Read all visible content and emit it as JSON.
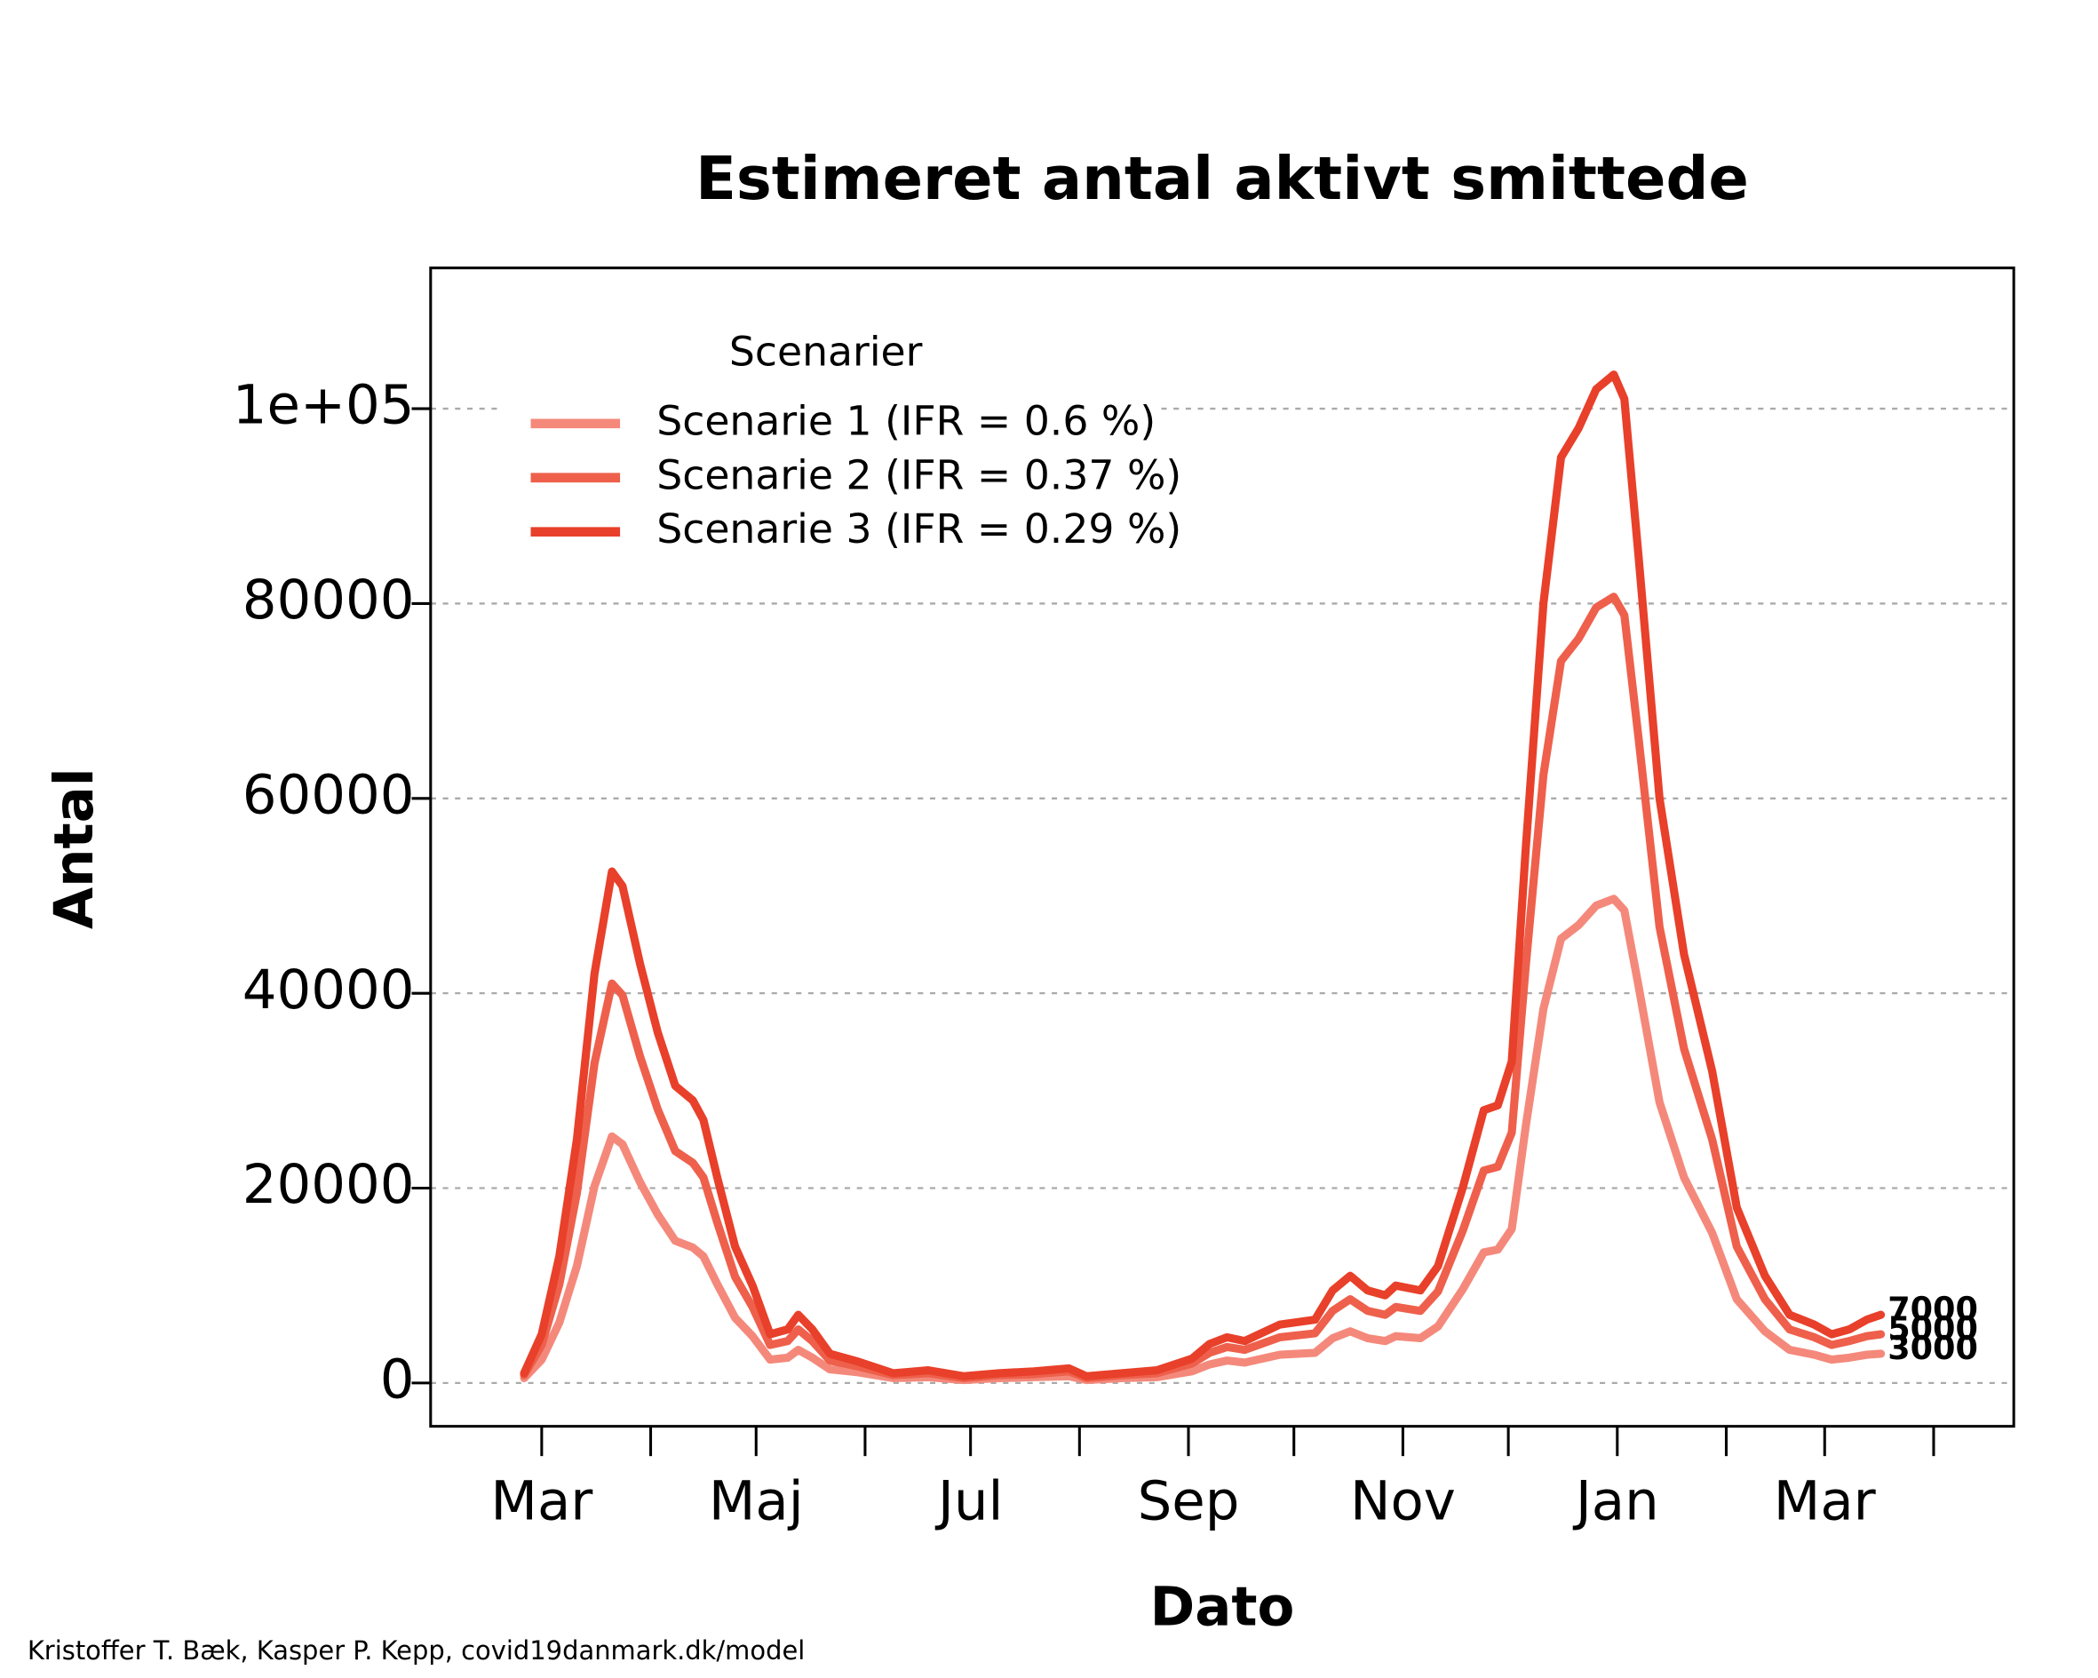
{
  "chart_data": {
    "type": "line",
    "title": "Estimeret antal aktivt smittede",
    "xlabel": "Dato",
    "ylabel": "Antal",
    "credit": "Kristoffer T. Bæk, Kasper P. Kepp, covid19danmark.dk/model",
    "legend_title": "Scenarier",
    "legend_position": "upper left",
    "grid": true,
    "xlim": [
      -31.6,
      418.8
    ],
    "xticks": [
      {
        "value": 0,
        "label": "Mar"
      },
      {
        "value": 61,
        "label": "Maj"
      },
      {
        "value": 122,
        "label": "Jul"
      },
      {
        "value": 184,
        "label": "Sep"
      },
      {
        "value": 245,
        "label": "Nov"
      },
      {
        "value": 306,
        "label": "Jan"
      },
      {
        "value": 365,
        "label": "Mar"
      }
    ],
    "xminor_ticks": [
      31,
      92,
      153,
      214,
      275,
      337,
      396
    ],
    "ylim": [
      -4444,
      114444
    ],
    "yticks": [
      0,
      20000,
      40000,
      60000,
      80000,
      {
        "value": 100000,
        "label": "1e+05"
      }
    ],
    "x": [
      -5,
      0,
      5,
      10,
      15,
      20,
      23,
      28,
      33,
      38,
      43,
      46,
      50,
      55,
      60,
      65,
      70,
      73,
      77,
      82,
      90,
      100,
      110,
      120,
      130,
      140,
      150,
      155,
      165,
      175,
      185,
      190,
      195,
      200,
      210,
      220,
      225,
      230,
      235,
      240,
      243,
      250,
      255,
      262,
      268,
      272,
      276,
      280,
      285,
      290,
      295,
      300,
      305,
      308,
      312,
      318,
      325,
      333,
      340,
      348,
      355,
      362,
      367,
      372,
      377,
      381
    ],
    "series": [
      {
        "name": "Scenarie 1 (IFR = 0.6 %)",
        "color": "#f4897b",
        "end_label": "3000",
        "values": [
          500,
          2400,
          6200,
          12000,
          20200,
          25300,
          24500,
          20600,
          17300,
          14600,
          13900,
          13000,
          10100,
          6700,
          4800,
          2400,
          2600,
          3400,
          2600,
          1400,
          1100,
          500,
          600,
          300,
          500,
          600,
          700,
          300,
          500,
          600,
          1200,
          1900,
          2300,
          2100,
          2900,
          3100,
          4600,
          5300,
          4600,
          4300,
          4800,
          4600,
          5800,
          9600,
          13400,
          13700,
          15800,
          26400,
          38400,
          45600,
          47000,
          49000,
          49700,
          48500,
          40800,
          28800,
          21100,
          15400,
          8600,
          5300,
          3400,
          2900,
          2400,
          2600,
          2900,
          3000
        ]
      },
      {
        "name": "Scenarie 2 (IFR = 0.37 %)",
        "color": "#ee604c",
        "end_label": "5000",
        "values": [
          800,
          3900,
          10100,
          19500,
          32800,
          41000,
          39800,
          33500,
          28100,
          23800,
          22600,
          21100,
          16400,
          10900,
          7800,
          3900,
          4300,
          5500,
          4300,
          2300,
          1700,
          800,
          1000,
          500,
          800,
          900,
          1200,
          500,
          800,
          1000,
          2000,
          3100,
          3700,
          3400,
          4700,
          5100,
          7400,
          8600,
          7400,
          7000,
          7800,
          7400,
          9400,
          15600,
          21800,
          22200,
          25700,
          42900,
          62400,
          74100,
          76400,
          79600,
          80700,
          78800,
          66300,
          46800,
          34300,
          25000,
          14000,
          8600,
          5500,
          4700,
          3900,
          4300,
          4800,
          5000
        ]
      },
      {
        "name": "Scenarie 3 (IFR = 0.29 %)",
        "color": "#e8402a",
        "end_label": "7000",
        "values": [
          1000,
          5000,
          13000,
          25000,
          42000,
          52500,
          51000,
          43000,
          36000,
          30500,
          29000,
          27000,
          21000,
          14000,
          10000,
          5000,
          5500,
          7000,
          5500,
          3000,
          2200,
          1000,
          1300,
          700,
          1000,
          1200,
          1500,
          700,
          1000,
          1300,
          2500,
          4000,
          4700,
          4300,
          6000,
          6500,
          9500,
          11000,
          9500,
          9000,
          10000,
          9500,
          12000,
          20000,
          28000,
          28500,
          33000,
          55000,
          80000,
          95000,
          98000,
          102000,
          103500,
          101000,
          85000,
          60000,
          44000,
          32000,
          18000,
          11000,
          7000,
          6000,
          5000,
          5500,
          6500,
          7000
        ]
      }
    ]
  }
}
